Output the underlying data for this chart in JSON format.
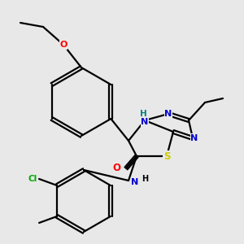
{
  "background_color": "#e8e8e8",
  "bond_color": "#000000",
  "atom_colors": {
    "O": "#ff0000",
    "N": "#0000cc",
    "S": "#cccc00",
    "Cl": "#00aa00",
    "NH_ring": "#008080",
    "N_amide": "#0000cc",
    "C": "#000000"
  },
  "figsize": [
    3.0,
    3.0
  ],
  "dpi": 100
}
